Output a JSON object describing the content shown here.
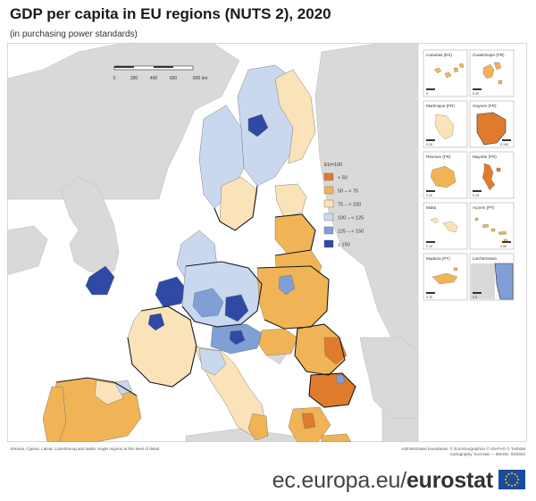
{
  "title": "GDP per capita in EU regions (NUTS 2), 2020",
  "subtitle": "(in purchasing power standards)",
  "scale_bar": {
    "ticks": [
      "0",
      "200",
      "400",
      "600",
      "800 km"
    ]
  },
  "legend": {
    "header": "EU=100",
    "classes": [
      {
        "label": "< 50",
        "color": "#e07b2e"
      },
      {
        "label": "50 – < 75",
        "color": "#f0b456"
      },
      {
        "label": "75 – < 100",
        "color": "#fae3b9"
      },
      {
        "label": "100 – < 125",
        "color": "#c9d8ee"
      },
      {
        "label": "125 – < 150",
        "color": "#7f9fd6"
      },
      {
        "label": "≥ 150",
        "color": "#2e4aa5"
      }
    ]
  },
  "insets": [
    {
      "label": "Canarias (ES)",
      "scale": "0",
      "color": "#f0b456"
    },
    {
      "label": "Guadeloupe (FR)",
      "scale": "0  20",
      "color": "#f0b456"
    },
    {
      "label": "Martinique (FR)",
      "scale": "0  20",
      "color": "#fae3b9"
    },
    {
      "label": "Guyane (FR)",
      "scale": "0  100",
      "color": "#e07b2e"
    },
    {
      "label": "Réunion (FR)",
      "scale": "0  20",
      "color": "#f0b456"
    },
    {
      "label": "Mayotte (FR)",
      "scale": "0  15",
      "color": "#e07b2e"
    },
    {
      "label": "Malta",
      "scale": "0  10",
      "color": "#fae3b9"
    },
    {
      "label": "Açores (PT)",
      "scale": "0  50",
      "color": "#f0b456"
    },
    {
      "label": "Madeira (PT)",
      "scale": "0  20",
      "color": "#f0b456"
    },
    {
      "label": "Liechtenstein",
      "scale": "0  5",
      "color": "#7f9fd6"
    }
  ],
  "footnote_left": "Estonia, Cyprus, Latvia, Luxembourg and Malta: single regions at this level of detail.",
  "footnote_right": [
    "Administrative boundaries: © EuroGeographics © UN-FAO © Turkstat",
    "Cartography: Eurostat — IMAGE, 02/2022"
  ],
  "brand": {
    "url": "ec.europa.eu/",
    "name": "eurostat"
  },
  "colors": {
    "non_eu": "#d9d9d9",
    "sea": "#ffffff",
    "border": "#1a1a1a"
  }
}
